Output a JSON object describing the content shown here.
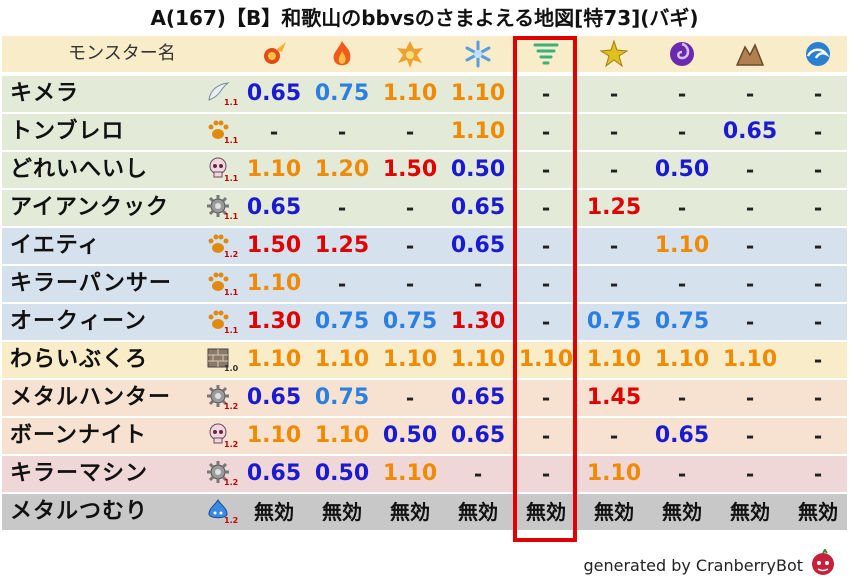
{
  "title": "A(167)【B】和歌山のbbvsのさまよえる地図[特73](バギ)",
  "header_label": "モンスター名",
  "columns": [
    {
      "icon": "fire-ball-icon",
      "color": "#e24a1a"
    },
    {
      "icon": "flame-icon",
      "color": "#f05a1a"
    },
    {
      "icon": "explosion-icon",
      "color": "#f0a030"
    },
    {
      "icon": "ice-crystal-icon",
      "color": "#5a9ee0"
    },
    {
      "icon": "tornado-icon",
      "color": "#3ab07a"
    },
    {
      "icon": "lightning-icon",
      "color": "#e0c020"
    },
    {
      "icon": "dark-swirl-icon",
      "color": "#6a2ab0"
    },
    {
      "icon": "rock-icon",
      "color": "#b08050"
    },
    {
      "icon": "water-wave-icon",
      "color": "#2a80d0"
    }
  ],
  "highlight_column": 4,
  "rows": [
    {
      "name": "キメラ",
      "type_icon": "wing-icon",
      "type_level": "1.1",
      "bg": "green",
      "values": [
        {
          "t": "0.65",
          "c": "blue"
        },
        {
          "t": "0.75",
          "c": "lblue"
        },
        {
          "t": "1.10",
          "c": "orange"
        },
        {
          "t": "1.10",
          "c": "orange"
        },
        {
          "t": "-",
          "c": "dash"
        },
        {
          "t": "-",
          "c": "dash"
        },
        {
          "t": "-",
          "c": "dash"
        },
        {
          "t": "-",
          "c": "dash"
        },
        {
          "t": "-",
          "c": "dash"
        }
      ]
    },
    {
      "name": "トンブレロ",
      "type_icon": "paw-icon",
      "type_level": "1.1",
      "bg": "green",
      "values": [
        {
          "t": "-",
          "c": "dash"
        },
        {
          "t": "-",
          "c": "dash"
        },
        {
          "t": "-",
          "c": "dash"
        },
        {
          "t": "1.10",
          "c": "orange"
        },
        {
          "t": "-",
          "c": "dash"
        },
        {
          "t": "-",
          "c": "dash"
        },
        {
          "t": "-",
          "c": "dash"
        },
        {
          "t": "0.65",
          "c": "blue"
        },
        {
          "t": "-",
          "c": "dash"
        }
      ]
    },
    {
      "name": "どれいへいし",
      "type_icon": "skull-icon",
      "type_level": "1.1",
      "bg": "green",
      "values": [
        {
          "t": "1.10",
          "c": "orange"
        },
        {
          "t": "1.20",
          "c": "orange"
        },
        {
          "t": "1.50",
          "c": "red"
        },
        {
          "t": "0.50",
          "c": "blue"
        },
        {
          "t": "-",
          "c": "dash"
        },
        {
          "t": "-",
          "c": "dash"
        },
        {
          "t": "0.50",
          "c": "blue"
        },
        {
          "t": "-",
          "c": "dash"
        },
        {
          "t": "-",
          "c": "dash"
        }
      ]
    },
    {
      "name": "アイアンクック",
      "type_icon": "gear-icon",
      "type_level": "1.1",
      "bg": "green",
      "values": [
        {
          "t": "0.65",
          "c": "blue"
        },
        {
          "t": "-",
          "c": "dash"
        },
        {
          "t": "-",
          "c": "dash"
        },
        {
          "t": "0.65",
          "c": "blue"
        },
        {
          "t": "-",
          "c": "dash"
        },
        {
          "t": "1.25",
          "c": "red"
        },
        {
          "t": "-",
          "c": "dash"
        },
        {
          "t": "-",
          "c": "dash"
        },
        {
          "t": "-",
          "c": "dash"
        }
      ]
    },
    {
      "name": "イエティ",
      "type_icon": "paw-icon",
      "type_level": "1.2",
      "bg": "blue",
      "values": [
        {
          "t": "1.50",
          "c": "red"
        },
        {
          "t": "1.25",
          "c": "red"
        },
        {
          "t": "-",
          "c": "dash"
        },
        {
          "t": "0.65",
          "c": "blue"
        },
        {
          "t": "-",
          "c": "dash"
        },
        {
          "t": "-",
          "c": "dash"
        },
        {
          "t": "1.10",
          "c": "orange"
        },
        {
          "t": "-",
          "c": "dash"
        },
        {
          "t": "-",
          "c": "dash"
        }
      ]
    },
    {
      "name": "キラーパンサー",
      "type_icon": "paw-icon",
      "type_level": "1.1",
      "bg": "blue",
      "values": [
        {
          "t": "1.10",
          "c": "orange"
        },
        {
          "t": "-",
          "c": "dash"
        },
        {
          "t": "-",
          "c": "dash"
        },
        {
          "t": "-",
          "c": "dash"
        },
        {
          "t": "-",
          "c": "dash"
        },
        {
          "t": "-",
          "c": "dash"
        },
        {
          "t": "-",
          "c": "dash"
        },
        {
          "t": "-",
          "c": "dash"
        },
        {
          "t": "-",
          "c": "dash"
        }
      ]
    },
    {
      "name": "オークィーン",
      "type_icon": "paw-icon",
      "type_level": "1.1",
      "bg": "blue",
      "values": [
        {
          "t": "1.30",
          "c": "red"
        },
        {
          "t": "0.75",
          "c": "lblue"
        },
        {
          "t": "0.75",
          "c": "lblue"
        },
        {
          "t": "1.30",
          "c": "red"
        },
        {
          "t": "-",
          "c": "dash"
        },
        {
          "t": "0.75",
          "c": "lblue"
        },
        {
          "t": "0.75",
          "c": "lblue"
        },
        {
          "t": "-",
          "c": "dash"
        },
        {
          "t": "-",
          "c": "dash"
        }
      ]
    },
    {
      "name": "わらいぶくろ",
      "type_icon": "brick-icon",
      "type_level": "1.0",
      "bg": "yellow",
      "values": [
        {
          "t": "1.10",
          "c": "orange"
        },
        {
          "t": "1.10",
          "c": "orange"
        },
        {
          "t": "1.10",
          "c": "orange"
        },
        {
          "t": "1.10",
          "c": "orange"
        },
        {
          "t": "1.10",
          "c": "orange"
        },
        {
          "t": "1.10",
          "c": "orange"
        },
        {
          "t": "1.10",
          "c": "orange"
        },
        {
          "t": "1.10",
          "c": "orange"
        },
        {
          "t": "-",
          "c": "dash"
        }
      ]
    },
    {
      "name": "メタルハンター",
      "type_icon": "gear-icon",
      "type_level": "1.2",
      "bg": "peach",
      "values": [
        {
          "t": "0.65",
          "c": "blue"
        },
        {
          "t": "0.75",
          "c": "lblue"
        },
        {
          "t": "-",
          "c": "dash"
        },
        {
          "t": "0.65",
          "c": "blue"
        },
        {
          "t": "-",
          "c": "dash"
        },
        {
          "t": "1.45",
          "c": "red"
        },
        {
          "t": "-",
          "c": "dash"
        },
        {
          "t": "-",
          "c": "dash"
        },
        {
          "t": "-",
          "c": "dash"
        }
      ]
    },
    {
      "name": "ボーンナイト",
      "type_icon": "skull-icon",
      "type_level": "1.2",
      "bg": "peach",
      "values": [
        {
          "t": "1.10",
          "c": "orange"
        },
        {
          "t": "1.10",
          "c": "orange"
        },
        {
          "t": "0.50",
          "c": "blue"
        },
        {
          "t": "0.65",
          "c": "blue"
        },
        {
          "t": "-",
          "c": "dash"
        },
        {
          "t": "-",
          "c": "dash"
        },
        {
          "t": "0.65",
          "c": "blue"
        },
        {
          "t": "-",
          "c": "dash"
        },
        {
          "t": "-",
          "c": "dash"
        }
      ]
    },
    {
      "name": "キラーマシン",
      "type_icon": "gear-icon",
      "type_level": "1.2",
      "bg": "pink",
      "values": [
        {
          "t": "0.65",
          "c": "blue"
        },
        {
          "t": "0.50",
          "c": "blue"
        },
        {
          "t": "1.10",
          "c": "orange"
        },
        {
          "t": "-",
          "c": "dash"
        },
        {
          "t": "-",
          "c": "dash"
        },
        {
          "t": "1.10",
          "c": "orange"
        },
        {
          "t": "-",
          "c": "dash"
        },
        {
          "t": "-",
          "c": "dash"
        },
        {
          "t": "-",
          "c": "dash"
        }
      ]
    },
    {
      "name": "メタルつむり",
      "type_icon": "slime-icon",
      "type_level": "1.2",
      "bg": "gray",
      "values": [
        {
          "t": "無効",
          "c": "mukou"
        },
        {
          "t": "無効",
          "c": "mukou"
        },
        {
          "t": "無効",
          "c": "mukou"
        },
        {
          "t": "無効",
          "c": "mukou"
        },
        {
          "t": "無効",
          "c": "mukou"
        },
        {
          "t": "無効",
          "c": "mukou"
        },
        {
          "t": "無効",
          "c": "mukou"
        },
        {
          "t": "無効",
          "c": "mukou"
        },
        {
          "t": "無効",
          "c": "mukou"
        }
      ]
    }
  ],
  "footer": "generated by CranberryBot"
}
